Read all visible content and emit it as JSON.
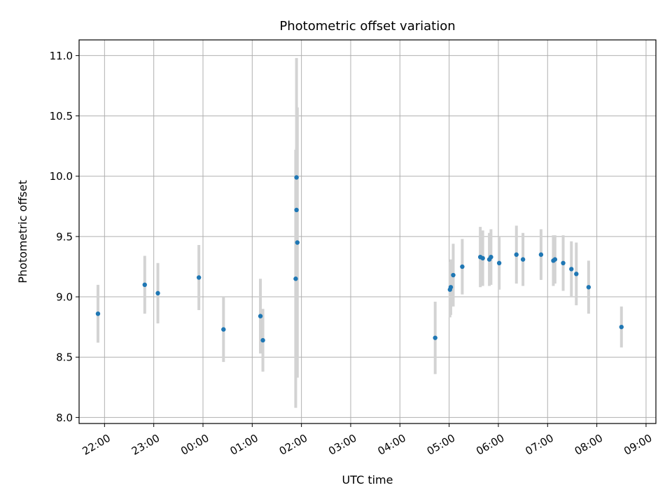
{
  "chart_data": {
    "type": "scatter",
    "title": "Photometric offset variation",
    "xlabel": "UTC time",
    "ylabel": "Photometric offset",
    "x_tick_labels": [
      "22:00",
      "23:00",
      "00:00",
      "01:00",
      "02:00",
      "03:00",
      "04:00",
      "05:00",
      "06:00",
      "07:00",
      "08:00",
      "09:00"
    ],
    "y_ticks": [
      8.0,
      8.5,
      9.0,
      9.5,
      10.0,
      10.5,
      11.0
    ],
    "y_tick_labels": [
      "8.0",
      "8.5",
      "9.0",
      "9.5",
      "10.0",
      "10.5",
      "11.0"
    ],
    "xlim": [
      "21:29",
      "09:12"
    ],
    "ylim": [
      7.95,
      11.13
    ],
    "grid": true,
    "marker_color": "#1f77b4",
    "errorbar_color": "#d3d3d3",
    "series": [
      {
        "points": [
          {
            "x": "21:52",
            "y": 8.86,
            "err": 0.24
          },
          {
            "x": "22:49",
            "y": 9.1,
            "err": 0.24
          },
          {
            "x": "23:05",
            "y": 9.03,
            "err": 0.25
          },
          {
            "x": "23:55",
            "y": 9.16,
            "err": 0.27
          },
          {
            "x": "00:25",
            "y": 8.73,
            "err": 0.27
          },
          {
            "x": "01:10",
            "y": 8.84,
            "err": 0.31
          },
          {
            "x": "01:13",
            "y": 8.64,
            "err": 0.26
          },
          {
            "x": "01:53",
            "y": 9.15,
            "err": 1.07
          },
          {
            "x": "01:54",
            "y": 9.99,
            "err": 0.99
          },
          {
            "x": "01:54",
            "y": 9.72,
            "err": 0.52
          },
          {
            "x": "01:55",
            "y": 9.45,
            "err": 1.12
          },
          {
            "x": "04:43",
            "y": 8.66,
            "err": 0.3
          },
          {
            "x": "05:01",
            "y": 9.06,
            "err": 0.23
          },
          {
            "x": "05:02",
            "y": 9.08,
            "err": 0.23
          },
          {
            "x": "05:05",
            "y": 9.18,
            "err": 0.26
          },
          {
            "x": "05:16",
            "y": 9.25,
            "err": 0.23
          },
          {
            "x": "05:38",
            "y": 9.33,
            "err": 0.25
          },
          {
            "x": "05:41",
            "y": 9.32,
            "err": 0.23
          },
          {
            "x": "05:49",
            "y": 9.31,
            "err": 0.22
          },
          {
            "x": "05:51",
            "y": 9.33,
            "err": 0.23
          },
          {
            "x": "06:01",
            "y": 9.28,
            "err": 0.22
          },
          {
            "x": "06:22",
            "y": 9.35,
            "err": 0.24
          },
          {
            "x": "06:30",
            "y": 9.31,
            "err": 0.22
          },
          {
            "x": "06:52",
            "y": 9.35,
            "err": 0.21
          },
          {
            "x": "07:07",
            "y": 9.3,
            "err": 0.21
          },
          {
            "x": "07:09",
            "y": 9.31,
            "err": 0.2
          },
          {
            "x": "07:19",
            "y": 9.28,
            "err": 0.23
          },
          {
            "x": "07:29",
            "y": 9.23,
            "err": 0.23
          },
          {
            "x": "07:35",
            "y": 9.19,
            "err": 0.26
          },
          {
            "x": "07:50",
            "y": 9.08,
            "err": 0.22
          },
          {
            "x": "08:30",
            "y": 8.75,
            "err": 0.17
          }
        ]
      }
    ]
  }
}
